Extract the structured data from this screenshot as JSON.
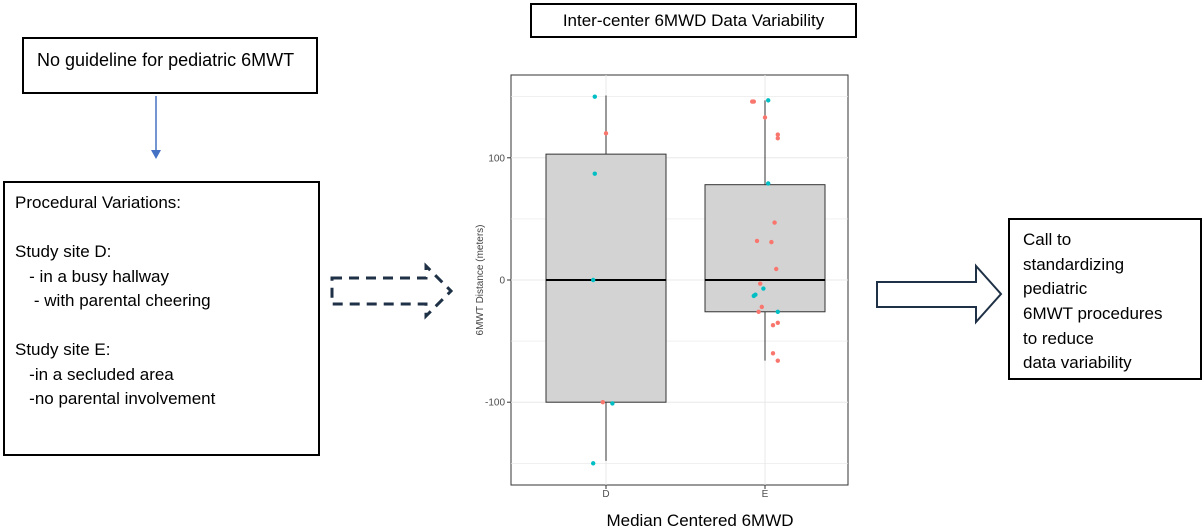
{
  "guideline_box": {
    "text": "No guideline for pediatric 6MWT"
  },
  "procedures_box": {
    "lines": [
      "Procedural Variations:",
      "",
      "Study site D:",
      "   - in a busy hallway",
      "    - with parental cheering",
      "",
      "Study site E:",
      "   -in a secluded area",
      "   -no parental involvement"
    ]
  },
  "call_box": {
    "lines": [
      "Call to",
      "standardizing",
      "pediatric",
      "6MWT procedures",
      "to reduce",
      "data variability"
    ]
  },
  "chart_title": "Inter-center 6MWD Data Variability",
  "chart_data": {
    "type": "box",
    "xlabel": "Median Centered 6MWD",
    "ylabel": "6MWT Distance (meters)",
    "ylim": [
      -165,
      165
    ],
    "yticks": [
      -100,
      0,
      100
    ],
    "ytick_labels": [
      "-100",
      "0",
      "100"
    ],
    "categories": [
      "D",
      "E"
    ],
    "grid": true,
    "boxes": [
      {
        "category": "D",
        "whisker_low": -148,
        "q1": -100,
        "median": 0,
        "q3": 103,
        "whisker_high": 151
      },
      {
        "category": "E",
        "whisker_low": -66,
        "q1": -26,
        "median": 0,
        "q3": 78,
        "whisker_high": 147
      }
    ],
    "point_colors": {
      "salmon": "#F8766D",
      "teal": "#00BFC4"
    },
    "points": [
      {
        "category": "D",
        "jitter": -0.07,
        "y": 150,
        "color": "teal"
      },
      {
        "category": "D",
        "jitter": 0.0,
        "y": 120,
        "color": "salmon"
      },
      {
        "category": "D",
        "jitter": -0.07,
        "y": 87,
        "color": "teal"
      },
      {
        "category": "D",
        "jitter": -0.08,
        "y": 0,
        "color": "teal"
      },
      {
        "category": "D",
        "jitter": -0.02,
        "y": -100,
        "color": "salmon"
      },
      {
        "category": "D",
        "jitter": 0.04,
        "y": -101,
        "color": "teal"
      },
      {
        "category": "D",
        "jitter": -0.08,
        "y": -150,
        "color": "teal"
      },
      {
        "category": "E",
        "jitter": -0.08,
        "y": 146,
        "color": "salmon"
      },
      {
        "category": "E",
        "jitter": -0.07,
        "y": 146,
        "color": "salmon"
      },
      {
        "category": "E",
        "jitter": 0.02,
        "y": 147,
        "color": "teal"
      },
      {
        "category": "E",
        "jitter": 0.0,
        "y": 133,
        "color": "salmon"
      },
      {
        "category": "E",
        "jitter": 0.08,
        "y": 119,
        "color": "salmon"
      },
      {
        "category": "E",
        "jitter": 0.08,
        "y": 116,
        "color": "salmon"
      },
      {
        "category": "E",
        "jitter": 0.02,
        "y": 79,
        "color": "teal"
      },
      {
        "category": "E",
        "jitter": 0.06,
        "y": 47,
        "color": "salmon"
      },
      {
        "category": "E",
        "jitter": -0.05,
        "y": 32,
        "color": "salmon"
      },
      {
        "category": "E",
        "jitter": 0.04,
        "y": 31,
        "color": "salmon"
      },
      {
        "category": "E",
        "jitter": 0.07,
        "y": 9,
        "color": "salmon"
      },
      {
        "category": "E",
        "jitter": -0.03,
        "y": -3,
        "color": "salmon"
      },
      {
        "category": "E",
        "jitter": -0.01,
        "y": -7,
        "color": "teal"
      },
      {
        "category": "E",
        "jitter": -0.07,
        "y": -13,
        "color": "teal"
      },
      {
        "category": "E",
        "jitter": -0.06,
        "y": -12,
        "color": "teal"
      },
      {
        "category": "E",
        "jitter": -0.02,
        "y": -22,
        "color": "salmon"
      },
      {
        "category": "E",
        "jitter": -0.04,
        "y": -26,
        "color": "salmon"
      },
      {
        "category": "E",
        "jitter": 0.08,
        "y": -26,
        "color": "teal"
      },
      {
        "category": "E",
        "jitter": 0.08,
        "y": -35,
        "color": "salmon"
      },
      {
        "category": "E",
        "jitter": 0.05,
        "y": -37,
        "color": "salmon"
      },
      {
        "category": "E",
        "jitter": 0.05,
        "y": -60,
        "color": "salmon"
      },
      {
        "category": "E",
        "jitter": 0.08,
        "y": -66,
        "color": "salmon"
      }
    ]
  }
}
